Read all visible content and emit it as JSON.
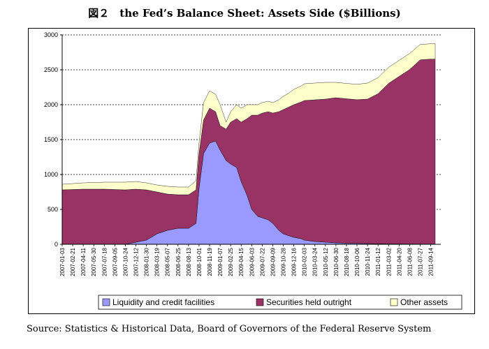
{
  "title": "図２　the Fed’s Balance Sheet: Assets Side ($Billions)",
  "source": "Source: Statistics & Historical Data, Board of Governors of the Federal Reserve System",
  "chart_data": {
    "type": "area",
    "stacked": true,
    "ylim": [
      0,
      3000
    ],
    "yticks": [
      0,
      500,
      1000,
      1500,
      2000,
      2500,
      3000
    ],
    "grid": "horizontal dashed",
    "legend_position": "bottom",
    "x_tick_labels": [
      "2007-01-03",
      "2007-02-21",
      "2007-04-11",
      "2007-05-30",
      "2007-07-18",
      "2007-09-05",
      "2007-10-24",
      "2007-12-12",
      "2008-01-30",
      "2008-03-19",
      "2008-05-07",
      "2008-06-25",
      "2008-08-13",
      "2008-10-01",
      "2008-11-19",
      "2009-01-07",
      "2009-02-25",
      "2009-04-15",
      "2009-06-03",
      "2009-07-22",
      "2009-09-09",
      "2009-10-28",
      "2009-12-16",
      "2010-02-03",
      "2010-03-24",
      "2010-05-12",
      "2010-06-30",
      "2010-08-18",
      "2010-10-06",
      "2010-11-24",
      "2011-01-12",
      "2011-03-02",
      "2011-04-20",
      "2011-06-08",
      "2011-07-27",
      "2011-09-14"
    ],
    "x": [
      "2007-01-03",
      "2007-04-11",
      "2007-07-18",
      "2007-10-24",
      "2007-12-12",
      "2008-01-30",
      "2008-03-19",
      "2008-05-07",
      "2008-06-25",
      "2008-08-13",
      "2008-09-17",
      "2008-10-01",
      "2008-10-22",
      "2008-11-19",
      "2008-12-17",
      "2009-01-07",
      "2009-02-04",
      "2009-02-25",
      "2009-03-25",
      "2009-04-15",
      "2009-05-13",
      "2009-06-03",
      "2009-07-01",
      "2009-07-22",
      "2009-08-19",
      "2009-09-09",
      "2009-10-07",
      "2009-10-28",
      "2009-11-25",
      "2009-12-16",
      "2010-01-20",
      "2010-02-03",
      "2010-03-24",
      "2010-05-12",
      "2010-06-30",
      "2010-08-18",
      "2010-10-06",
      "2010-11-24",
      "2011-01-12",
      "2011-03-02",
      "2011-04-20",
      "2011-06-08",
      "2011-07-27",
      "2011-09-14",
      "2011-10-05"
    ],
    "series": [
      {
        "name": "Liquidity and credit facilities",
        "color": "#9999ff",
        "values": [
          0,
          0,
          0,
          0,
          30,
          60,
          150,
          200,
          230,
          230,
          300,
          800,
          1300,
          1450,
          1480,
          1350,
          1200,
          1150,
          1100,
          900,
          700,
          500,
          400,
          380,
          350,
          300,
          200,
          150,
          120,
          100,
          80,
          60,
          40,
          30,
          20,
          15,
          12,
          10,
          8,
          6,
          5,
          4,
          3,
          3,
          3
        ]
      },
      {
        "name": "Securities held outright",
        "color": "#993366",
        "values": [
          780,
          790,
          790,
          780,
          760,
          720,
          600,
          520,
          480,
          480,
          480,
          500,
          480,
          500,
          420,
          350,
          450,
          600,
          700,
          850,
          1100,
          1350,
          1450,
          1500,
          1550,
          1580,
          1700,
          1780,
          1850,
          1900,
          1960,
          2000,
          2030,
          2050,
          2080,
          2070,
          2060,
          2070,
          2150,
          2300,
          2400,
          2500,
          2640,
          2650,
          2650
        ]
      },
      {
        "name": "Other assets",
        "color": "#ffffcc",
        "values": [
          80,
          90,
          100,
          110,
          110,
          100,
          100,
          110,
          110,
          110,
          130,
          150,
          250,
          250,
          250,
          300,
          100,
          150,
          200,
          200,
          200,
          150,
          150,
          150,
          150,
          150,
          170,
          190,
          200,
          220,
          230,
          240,
          240,
          240,
          220,
          220,
          220,
          230,
          230,
          230,
          230,
          230,
          220,
          220,
          220
        ]
      }
    ]
  }
}
